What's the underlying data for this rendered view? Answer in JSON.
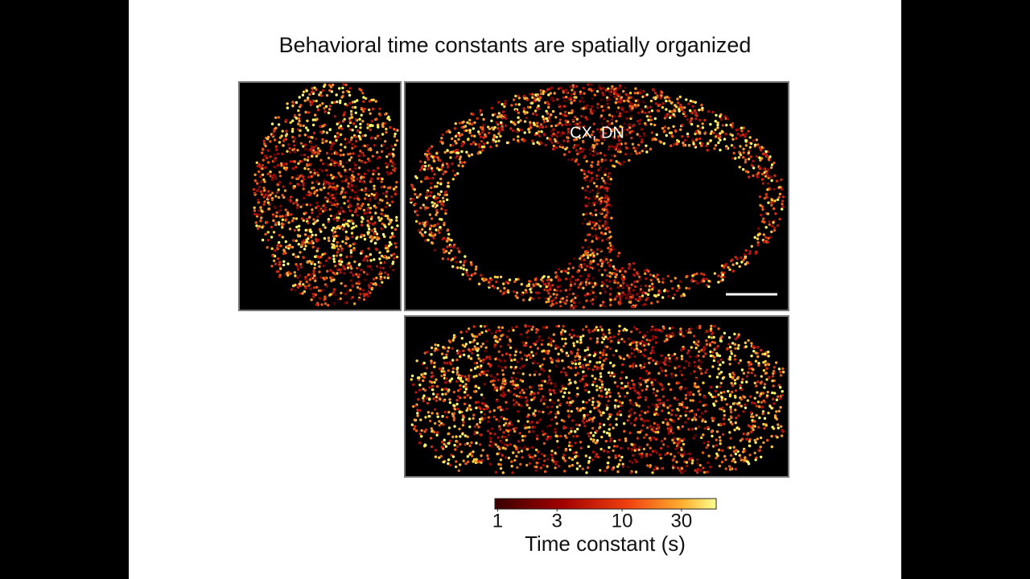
{
  "title": "Behavioral time constants are spatially organized",
  "annotation": "CX, DN",
  "colorbar": {
    "type": "colorbar",
    "xlim": [
      0.95,
      57
    ],
    "xticks": [
      1,
      3,
      10,
      30
    ],
    "log_scale": true,
    "label": "Time constant (s)"
  }
}
